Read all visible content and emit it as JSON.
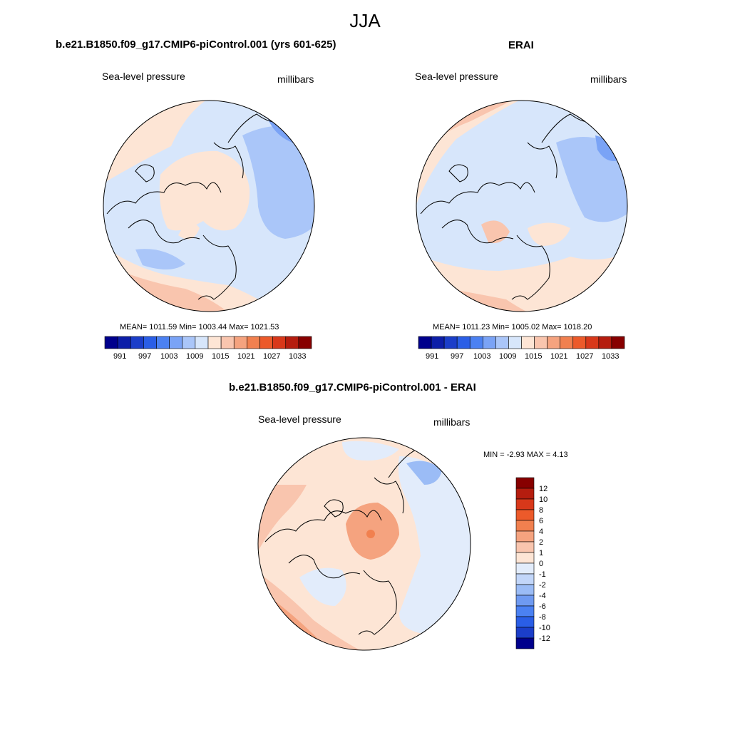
{
  "figure": {
    "title": "JJA"
  },
  "panels": [
    {
      "title": "b.e21.B1850.f09_g17.CMIP6-piControl.001 (yrs 601-625)",
      "left_label": "Sea-level pressure",
      "right_label": "millibars",
      "stats": "MEAN= 1011.59  Min= 1003.44  Max= 1021.53",
      "colorbar": {
        "ticks": [
          "991",
          "997",
          "1003",
          "1009",
          "1015",
          "1021",
          "1027",
          "1033"
        ],
        "colors": [
          "#00008c",
          "#0d1ea8",
          "#1b3ec9",
          "#2a5ee6",
          "#4b81f2",
          "#7aa3f6",
          "#aac6f9",
          "#d7e6fb",
          "#fde5d5",
          "#f9c5ae",
          "#f5a37f",
          "#f1804f",
          "#ec5a2a",
          "#d8381a",
          "#b51d0f",
          "#870000"
        ]
      },
      "map": {
        "projection": "north-polar-stereographic",
        "field": "sea-level-pressure"
      }
    },
    {
      "title": "ERAI",
      "left_label": "Sea-level pressure",
      "right_label": "millibars",
      "stats": "MEAN= 1011.23  Min= 1005.02  Max= 1018.20",
      "colorbar": {
        "ticks": [
          "991",
          "997",
          "1003",
          "1009",
          "1015",
          "1021",
          "1027",
          "1033"
        ],
        "colors": [
          "#00008c",
          "#0d1ea8",
          "#1b3ec9",
          "#2a5ee6",
          "#4b81f2",
          "#7aa3f6",
          "#aac6f9",
          "#d7e6fb",
          "#fde5d5",
          "#f9c5ae",
          "#f5a37f",
          "#f1804f",
          "#ec5a2a",
          "#d8381a",
          "#b51d0f",
          "#870000"
        ]
      },
      "map": {
        "projection": "north-polar-stereographic",
        "field": "sea-level-pressure"
      }
    },
    {
      "title": "b.e21.B1850.f09_g17.CMIP6-piControl.001 - ERAI",
      "left_label": "Sea-level pressure",
      "right_label": "millibars",
      "stats": "MIN =  -2.93 MAX =   4.13",
      "colorbar": {
        "ticks": [
          "12",
          "10",
          "8",
          "6",
          "4",
          "2",
          "1",
          "0",
          "-1",
          "-2",
          "-4",
          "-6",
          "-8",
          "-10",
          "-12"
        ],
        "colors": [
          "#870000",
          "#b51d0f",
          "#d8381a",
          "#ec5a2a",
          "#f1804f",
          "#f5a37f",
          "#f9c5ae",
          "#fde5d5",
          "#e2ecfb",
          "#c2d6f9",
          "#9bbcf6",
          "#6f9af1",
          "#4b81f2",
          "#2a5ee6",
          "#1b3ec9",
          "#00008c"
        ]
      },
      "map": {
        "projection": "north-polar-stereographic",
        "field": "sea-level-pressure-difference"
      }
    }
  ]
}
